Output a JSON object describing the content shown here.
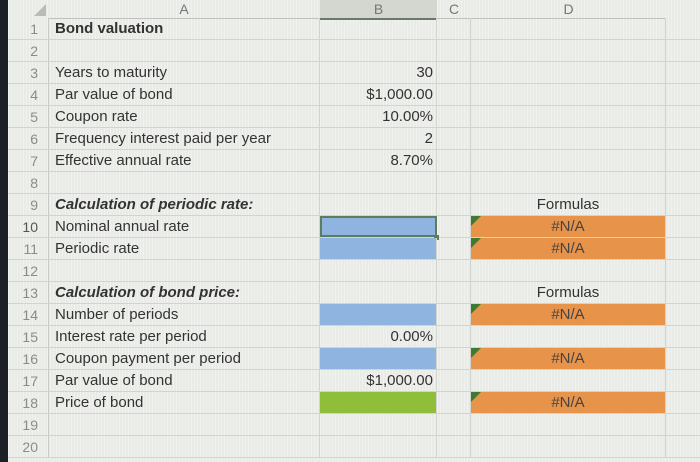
{
  "columns": [
    "A",
    "B",
    "C",
    "D"
  ],
  "selected_column": "B",
  "rows": [
    {
      "n": "1",
      "A": "Bond valuation",
      "A_style": "bold",
      "B": "",
      "D": ""
    },
    {
      "n": "2",
      "A": "",
      "B": "",
      "D": ""
    },
    {
      "n": "3",
      "A": "Years to maturity",
      "B": "30",
      "D": ""
    },
    {
      "n": "4",
      "A": "Par value of bond",
      "B": "$1,000.00",
      "D": ""
    },
    {
      "n": "5",
      "A": "Coupon rate",
      "B": "10.00%",
      "D": ""
    },
    {
      "n": "6",
      "A": "Frequency interest paid per year",
      "B": "2",
      "D": ""
    },
    {
      "n": "7",
      "A": "Effective annual rate",
      "B": "8.70%",
      "D": ""
    },
    {
      "n": "8",
      "A": "",
      "B": "",
      "D": ""
    },
    {
      "n": "9",
      "A": "Calculation of periodic rate:",
      "A_style": "bold-italic",
      "B": "",
      "D": "Formulas"
    },
    {
      "n": "10",
      "A": "Nominal annual rate",
      "B": "",
      "B_fill": "blue",
      "B_selected": true,
      "D": "#N/A",
      "D_fill": "orange"
    },
    {
      "n": "11",
      "A": "Periodic rate",
      "B": "",
      "B_fill": "blue",
      "D": "#N/A",
      "D_fill": "orange"
    },
    {
      "n": "12",
      "A": "",
      "B": "",
      "D": ""
    },
    {
      "n": "13",
      "A": "Calculation of bond price:",
      "A_style": "bold-italic",
      "B": "",
      "D": "Formulas"
    },
    {
      "n": "14",
      "A": "Number of periods",
      "B": "",
      "B_fill": "blue",
      "D": "#N/A",
      "D_fill": "orange"
    },
    {
      "n": "15",
      "A": "Interest rate per period",
      "B": "0.00%",
      "D": ""
    },
    {
      "n": "16",
      "A": "Coupon payment per period",
      "B": "",
      "B_fill": "blue",
      "D": "#N/A",
      "D_fill": "orange"
    },
    {
      "n": "17",
      "A": "Par value of bond",
      "B": "$1,000.00",
      "D": ""
    },
    {
      "n": "18",
      "A": "Price of bond",
      "B": "",
      "B_fill": "green",
      "D": "#N/A",
      "D_fill": "orange"
    },
    {
      "n": "19",
      "A": "",
      "B": "",
      "D": ""
    },
    {
      "n": "20",
      "A": "",
      "B": "",
      "D": ""
    }
  ],
  "colors": {
    "input_fill": "#8fb4df",
    "output_fill": "#8fbf3a",
    "formula_fill": "#e8934a",
    "error_indicator": "#3d7a34"
  }
}
